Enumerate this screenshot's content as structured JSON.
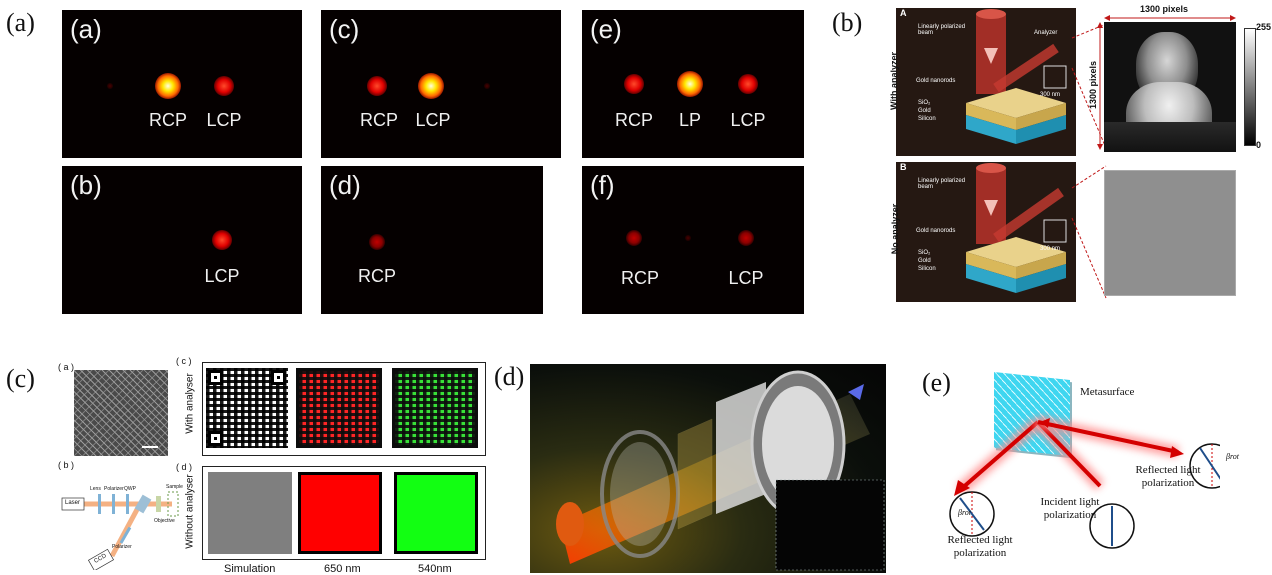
{
  "panel_labels": {
    "a": "(a)",
    "b": "(b)",
    "c": "(c)",
    "d": "(d)",
    "e": "(e)"
  },
  "panel_a": {
    "tiles": [
      {
        "letter": "(a)",
        "labels": [
          "RCP",
          "LCP"
        ]
      },
      {
        "letter": "(c)",
        "labels": [
          "RCP",
          "LCP"
        ]
      },
      {
        "letter": "(e)",
        "labels": [
          "RCP",
          "LP",
          "LCP"
        ]
      },
      {
        "letter": "(b)",
        "labels": [
          "LCP"
        ]
      },
      {
        "letter": "(d)",
        "labels": [
          "RCP"
        ]
      },
      {
        "letter": "(f)",
        "labels": [
          "RCP",
          "LCP"
        ]
      }
    ]
  },
  "panel_b": {
    "row_a": "A",
    "row_b": "B",
    "side_a": "With analyzer",
    "side_b": "No analyzer",
    "beam": "Linearly polarized beam",
    "analyzer": "Analyzer",
    "nanorods": "Gold nanorods",
    "sio2": "SiO₂",
    "gold": "Gold",
    "silicon": "Silicon",
    "scale": "300 nm",
    "width_px": "1300 pixels",
    "height_px": "1300 pixels",
    "bar_max": "255",
    "bar_min": "0"
  },
  "panel_c": {
    "sub_a": "( a )",
    "sub_b": "( b )",
    "sub_c": "( c )",
    "sub_d": "( d )",
    "with": "With analyser",
    "without": "Without analyser",
    "setup": {
      "laser": "Laser",
      "lens": "Lens",
      "polarizer": "Polarizer",
      "qwp": "QWP",
      "sample": "Sample",
      "objective": "Objective",
      "polarizer2": "Polarizer",
      "ccd": "CCD"
    },
    "cols": [
      "Simulation",
      "650 nm",
      "540nm"
    ]
  },
  "panel_e": {
    "metasurface": "Metasurface",
    "reflected_left": "Reflected light polarization",
    "incident": "Incident light polarization",
    "reflected_right": "Reflected light polarization",
    "beta": "βrot"
  }
}
